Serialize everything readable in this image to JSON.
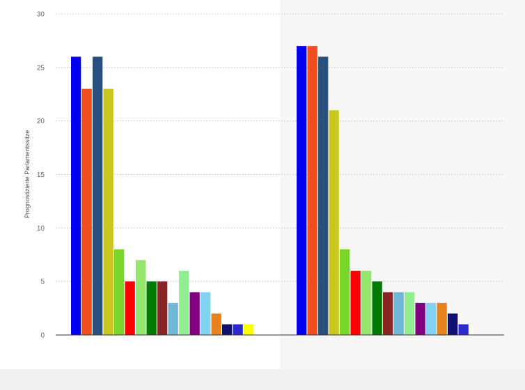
{
  "chart_data": {
    "type": "bar",
    "ylabel": "Prognostizierte Parlamentssitze",
    "ylim": [
      0,
      30
    ],
    "yticks": [
      0,
      5,
      10,
      15,
      20,
      25,
      30
    ],
    "grid": true,
    "groups": [
      {
        "bars": [
          {
            "value": 26,
            "color": "#0000ee"
          },
          {
            "value": 23,
            "color": "#f04e1e"
          },
          {
            "value": 26,
            "color": "#284f7f"
          },
          {
            "value": 23,
            "color": "#c8c81e"
          },
          {
            "value": 8,
            "color": "#7bd62a"
          },
          {
            "value": 5,
            "color": "#ff0000"
          },
          {
            "value": 7,
            "color": "#96e66e"
          },
          {
            "value": 5,
            "color": "#007a00"
          },
          {
            "value": 5,
            "color": "#8b2525"
          },
          {
            "value": 3,
            "color": "#6fb8d8"
          },
          {
            "value": 6,
            "color": "#90ee90"
          },
          {
            "value": 4,
            "color": "#800080"
          },
          {
            "value": 4,
            "color": "#7fd2f0"
          },
          {
            "value": 2,
            "color": "#e8821e"
          },
          {
            "value": 1,
            "color": "#101070"
          },
          {
            "value": 1,
            "color": "#2a2ad0"
          },
          {
            "value": 1,
            "color": "#ffff00"
          }
        ]
      },
      {
        "bars": [
          {
            "value": 27,
            "color": "#0000ee"
          },
          {
            "value": 27,
            "color": "#f04e1e"
          },
          {
            "value": 26,
            "color": "#284f7f"
          },
          {
            "value": 21,
            "color": "#c8c81e"
          },
          {
            "value": 8,
            "color": "#7bd62a"
          },
          {
            "value": 6,
            "color": "#ff0000"
          },
          {
            "value": 6,
            "color": "#96e66e"
          },
          {
            "value": 5,
            "color": "#007a00"
          },
          {
            "value": 4,
            "color": "#8b2525"
          },
          {
            "value": 4,
            "color": "#6fb8d8"
          },
          {
            "value": 4,
            "color": "#90ee90"
          },
          {
            "value": 3,
            "color": "#800080"
          },
          {
            "value": 3,
            "color": "#7fd2f0"
          },
          {
            "value": 3,
            "color": "#e8821e"
          },
          {
            "value": 2,
            "color": "#101070"
          },
          {
            "value": 1,
            "color": "#2a2ad0"
          }
        ]
      }
    ],
    "colors": {
      "page_bg": "#f1f1f1",
      "plot_bg_left": "#ffffff",
      "plot_bg_right": "#f7f7f7",
      "grid": "#cccccc",
      "axis": "#333333"
    }
  }
}
